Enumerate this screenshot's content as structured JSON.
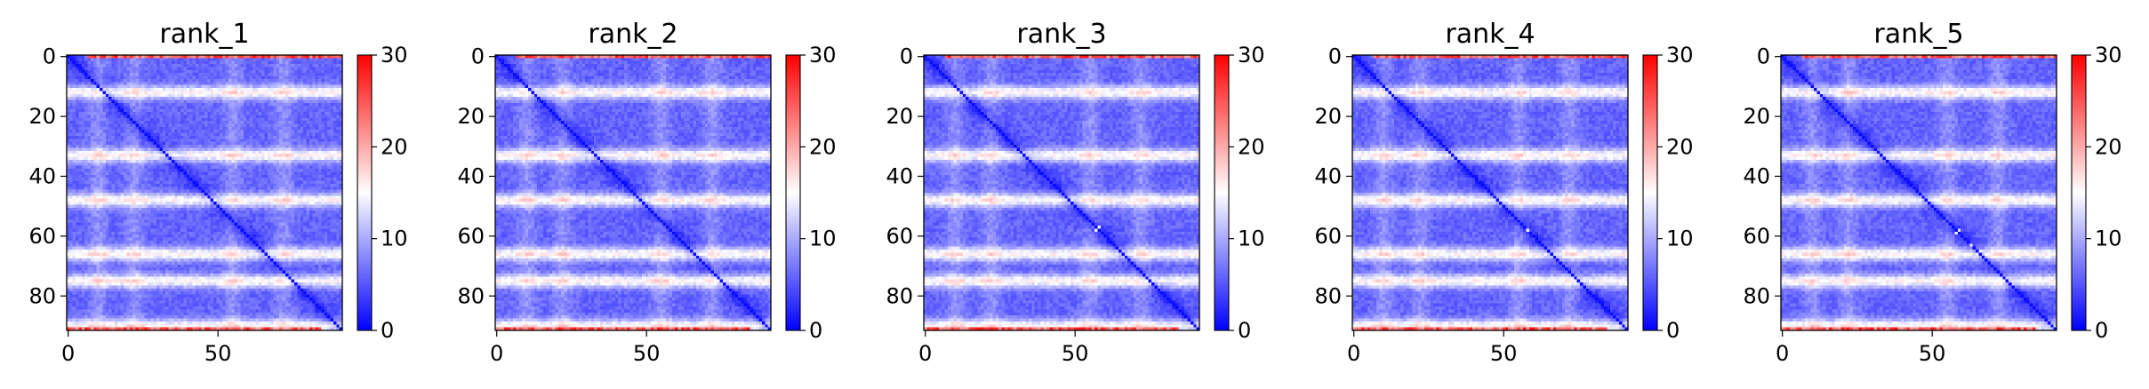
{
  "chart_data": [
    {
      "type": "heatmap",
      "title": "rank_1",
      "size": 92,
      "xticks": [
        0,
        50
      ],
      "yticks": [
        0,
        20,
        40,
        60,
        80
      ],
      "colorbar": {
        "ticks": [
          0,
          10,
          20,
          30
        ],
        "min": 0,
        "max": 30,
        "colors": [
          "#0000ff",
          "#ffffff",
          "#ff0000"
        ]
      },
      "bright_bands": [
        12,
        33,
        48,
        66,
        75,
        90
      ],
      "bright_cols": [
        10,
        22,
        55,
        72
      ],
      "corner_hot": [
        0,
        91
      ],
      "outliers": []
    },
    {
      "type": "heatmap",
      "title": "rank_2",
      "size": 92,
      "xticks": [
        0,
        50
      ],
      "yticks": [
        0,
        20,
        40,
        60,
        80
      ],
      "colorbar": {
        "ticks": [
          0,
          10,
          20,
          30
        ],
        "min": 0,
        "max": 30,
        "colors": [
          "#0000ff",
          "#ffffff",
          "#ff0000"
        ]
      },
      "bright_bands": [
        12,
        33,
        48,
        66,
        75,
        90
      ],
      "bright_cols": [
        10,
        22,
        55,
        72
      ],
      "corner_hot": [
        0,
        91
      ],
      "outliers": []
    },
    {
      "type": "heatmap",
      "title": "rank_3",
      "size": 92,
      "xticks": [
        0,
        50
      ],
      "yticks": [
        0,
        20,
        40,
        60,
        80
      ],
      "colorbar": {
        "ticks": [
          0,
          10,
          20,
          30
        ],
        "min": 0,
        "max": 30,
        "colors": [
          "#0000ff",
          "#ffffff",
          "#ff0000"
        ]
      },
      "bright_bands": [
        12,
        33,
        48,
        66,
        75,
        90
      ],
      "bright_cols": [
        10,
        22,
        55,
        72
      ],
      "corner_hot": [
        0,
        91
      ],
      "outliers": [
        [
          57,
          58
        ]
      ]
    },
    {
      "type": "heatmap",
      "title": "rank_4",
      "size": 92,
      "xticks": [
        0,
        50
      ],
      "yticks": [
        0,
        20,
        40,
        60,
        80
      ],
      "colorbar": {
        "ticks": [
          0,
          10,
          20,
          30
        ],
        "min": 0,
        "max": 30,
        "colors": [
          "#0000ff",
          "#ffffff",
          "#ff0000"
        ]
      },
      "bright_bands": [
        12,
        33,
        48,
        66,
        75,
        90
      ],
      "bright_cols": [
        10,
        22,
        55,
        72
      ],
      "corner_hot": [
        0,
        91
      ],
      "outliers": [
        [
          58,
          58
        ]
      ]
    },
    {
      "type": "heatmap",
      "title": "rank_5",
      "size": 92,
      "xticks": [
        0,
        50
      ],
      "yticks": [
        0,
        20,
        40,
        60,
        80
      ],
      "colorbar": {
        "ticks": [
          0,
          10,
          20,
          30
        ],
        "min": 0,
        "max": 30,
        "colors": [
          "#0000ff",
          "#ffffff",
          "#ff0000"
        ]
      },
      "bright_bands": [
        12,
        33,
        48,
        66,
        75,
        90
      ],
      "bright_cols": [
        10,
        22,
        55,
        72
      ],
      "corner_hot": [
        0,
        91
      ],
      "outliers": [
        [
          58,
          59
        ],
        [
          63,
          63
        ],
        [
          65,
          66
        ]
      ]
    }
  ]
}
